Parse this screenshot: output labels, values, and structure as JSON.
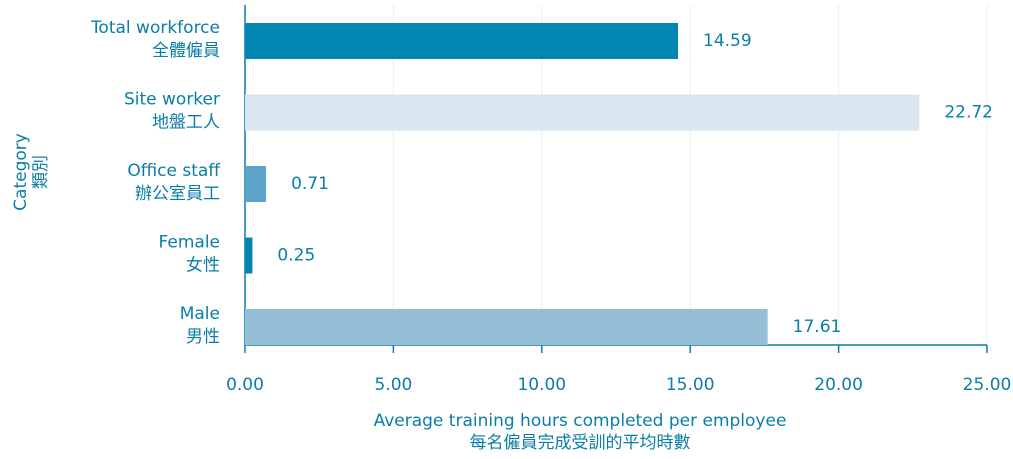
{
  "chart_data": {
    "type": "bar",
    "orientation": "horizontal",
    "categories": [
      [
        "Total workforce",
        "全體僱員"
      ],
      [
        "Site worker",
        "地盤工人"
      ],
      [
        "Office staff",
        "辦公室員工"
      ],
      [
        "Female",
        "女性"
      ],
      [
        "Male",
        "男性"
      ]
    ],
    "values": [
      14.59,
      22.72,
      0.71,
      0.25,
      17.61
    ],
    "colors": [
      "#0086b0",
      "#d8e7f0",
      "#5ea6c9",
      "#0086b0",
      "#95bfd7"
    ],
    "xlim": [
      0,
      25
    ],
    "xticks": [
      {
        "value": 0,
        "label": "0.00"
      },
      {
        "value": 5,
        "label": "5.00"
      },
      {
        "value": 10,
        "label": "10.00"
      },
      {
        "value": 15,
        "label": "15.00"
      },
      {
        "value": 20,
        "label": "20.00"
      },
      {
        "value": 25,
        "label": "25.00"
      }
    ],
    "x_label": [
      "Average training hours completed per employee",
      "每名僱員完成受訓的平均時數"
    ],
    "y_label": [
      "Category",
      "類別"
    ],
    "grid": true
  }
}
